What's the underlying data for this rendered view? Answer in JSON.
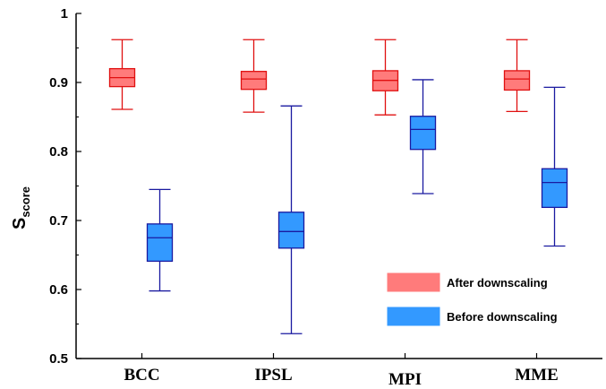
{
  "chart_data": {
    "type": "boxplot",
    "title": "",
    "xlabel": "",
    "ylabel": "S",
    "ylabel_subscript": "score",
    "ylim": [
      0.5,
      1.0
    ],
    "yticks": [
      "0.5",
      "0.6",
      "0.7",
      "0.8",
      "0.9",
      "1"
    ],
    "categories": [
      "BCC",
      "IPSL",
      "MPI",
      "MME"
    ],
    "grid": false,
    "legend_position": "bottom-right",
    "series": [
      {
        "name": "After downscaling",
        "fill": "#ff7b7b",
        "stroke": "#e01010",
        "boxes": [
          {
            "min": 0.861,
            "q1": 0.894,
            "median": 0.907,
            "q3": 0.92,
            "max": 0.962
          },
          {
            "min": 0.857,
            "q1": 0.89,
            "median": 0.905,
            "q3": 0.916,
            "max": 0.962
          },
          {
            "min": 0.853,
            "q1": 0.888,
            "median": 0.903,
            "q3": 0.917,
            "max": 0.962
          },
          {
            "min": 0.858,
            "q1": 0.889,
            "median": 0.905,
            "q3": 0.917,
            "max": 0.962
          }
        ]
      },
      {
        "name": "Before downscaling",
        "fill": "#3399ff",
        "stroke": "#1a1aa0",
        "boxes": [
          {
            "min": 0.598,
            "q1": 0.641,
            "median": 0.675,
            "q3": 0.695,
            "max": 0.745
          },
          {
            "min": 0.536,
            "q1": 0.66,
            "median": 0.684,
            "q3": 0.712,
            "max": 0.866
          },
          {
            "min": 0.739,
            "q1": 0.803,
            "median": 0.832,
            "q3": 0.851,
            "max": 0.904
          },
          {
            "min": 0.663,
            "q1": 0.719,
            "median": 0.755,
            "q3": 0.775,
            "max": 0.893
          }
        ]
      }
    ]
  }
}
